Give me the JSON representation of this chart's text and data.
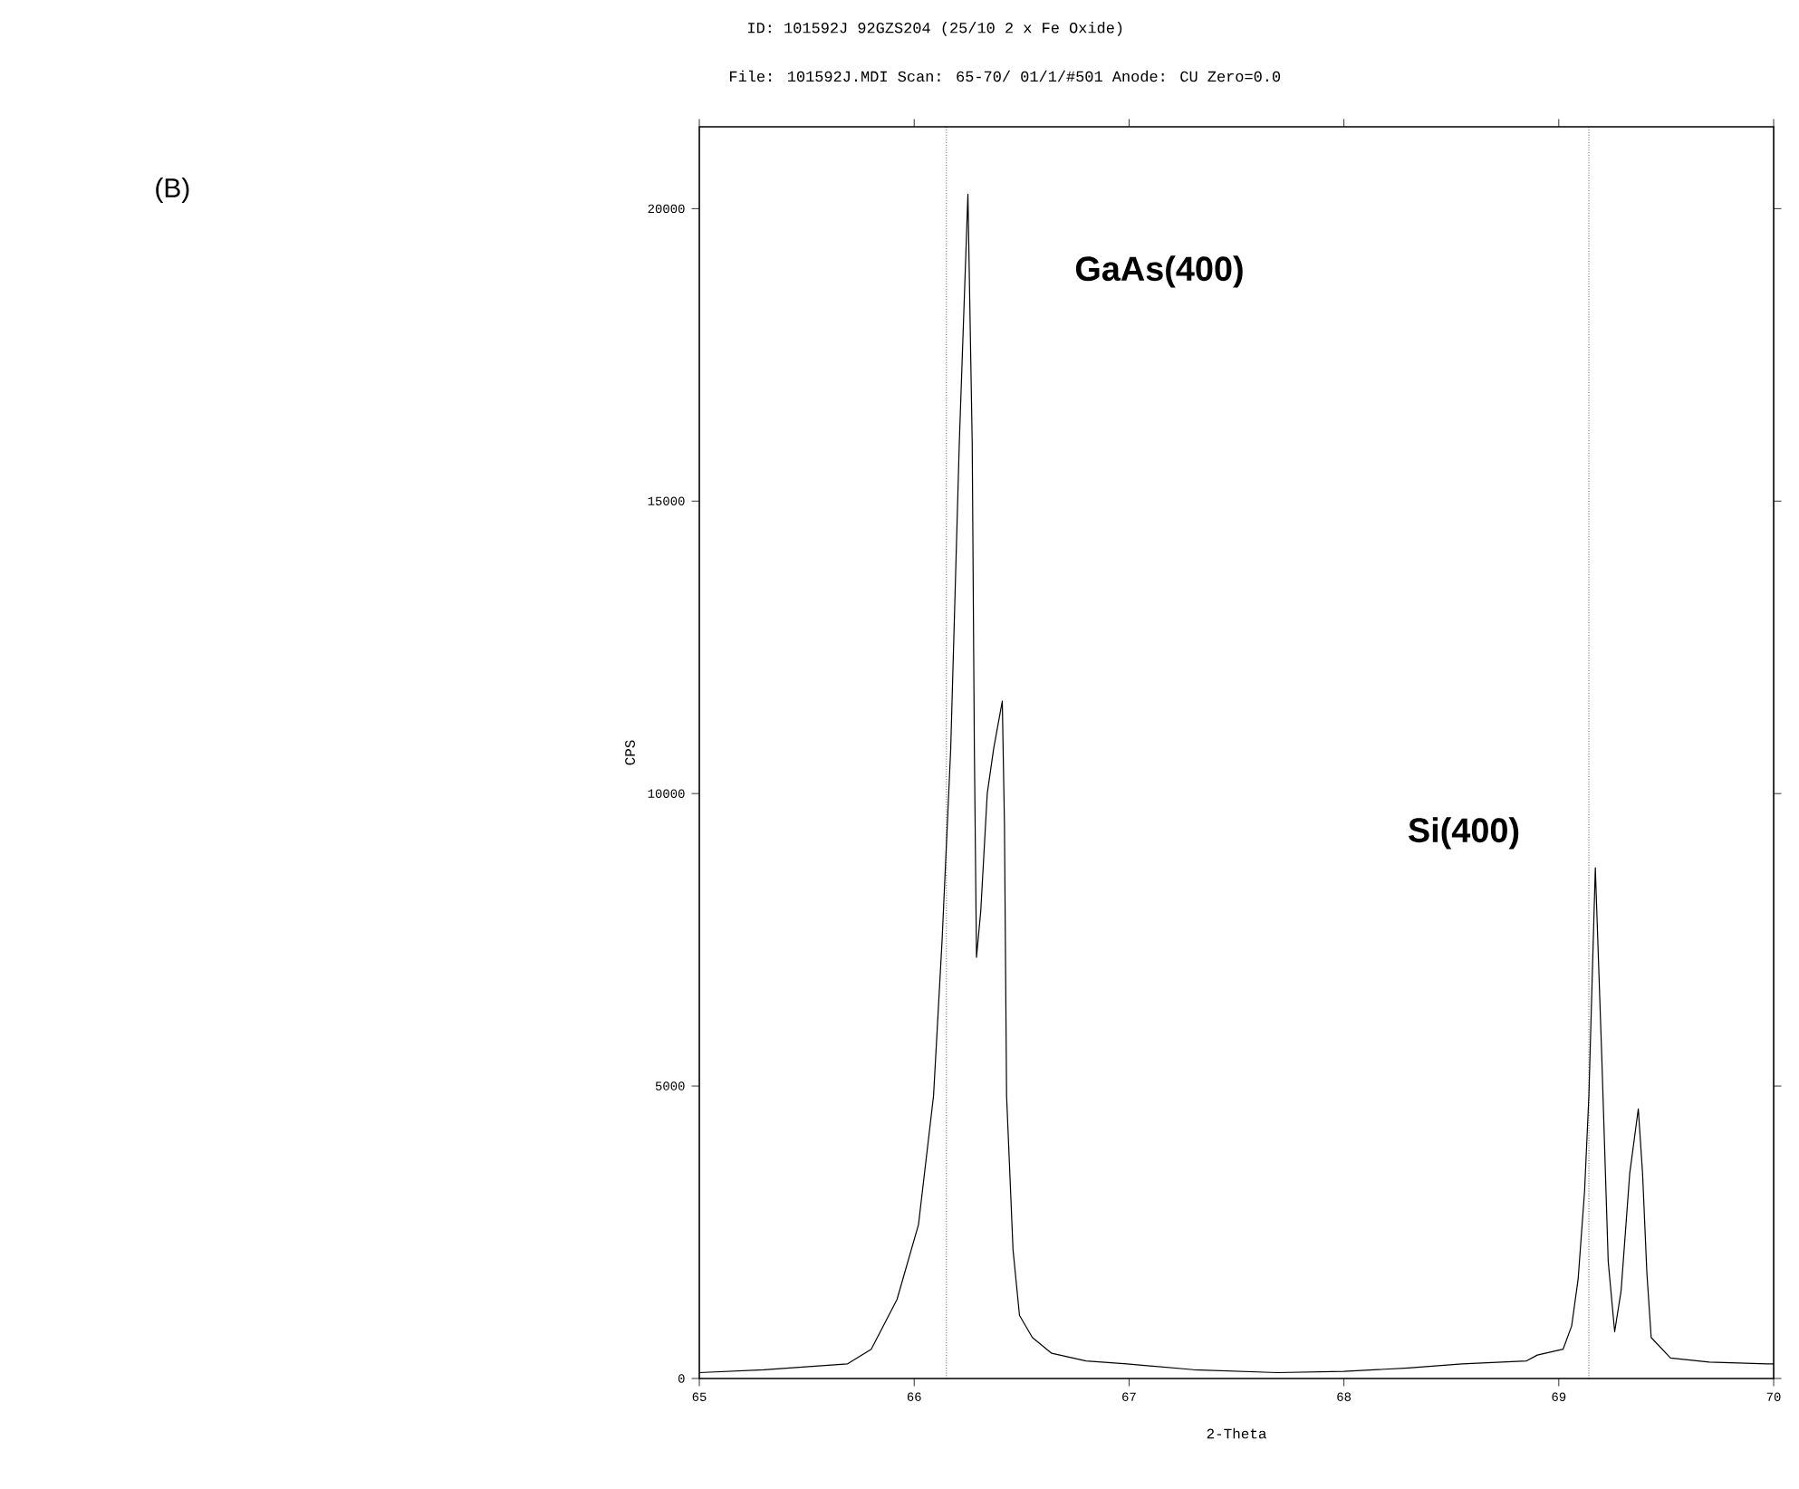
{
  "chart_data": {
    "type": "line",
    "title": "ID: 101592J 92GZS204 (25/10 2 x Fe Oxide)",
    "subtitle": "File: 101592J.MDI   Scan: 65-70/ 01/1/#501  Anode: CU        Zero=0.0",
    "xlabel": "2-Theta",
    "ylabel": "CPS",
    "annotations": [
      "(B)",
      "GaAs(400)",
      "Si(400)"
    ],
    "series": [
      {
        "color": "#000000",
        "marker": "none",
        "line_style": "solid",
        "x": [
          65.0,
          65.3,
          65.69,
          65.8,
          65.92,
          66.02,
          66.09,
          66.13,
          66.17,
          66.21,
          66.25,
          66.27,
          66.28,
          66.29,
          66.31,
          66.34,
          66.37,
          66.41,
          66.42,
          66.43,
          66.46,
          66.49,
          66.55,
          66.64,
          66.8,
          66.99,
          67.3,
          67.69,
          68.0,
          68.3,
          68.55,
          68.85,
          68.9,
          69.02,
          69.06,
          69.09,
          69.12,
          69.14,
          69.17,
          69.2,
          69.23,
          69.26,
          69.29,
          69.33,
          69.37,
          69.39,
          69.41,
          69.43,
          69.52,
          69.7,
          69.97,
          70.0
        ],
        "values": [
          100,
          150,
          250,
          500,
          1350,
          2630,
          4830,
          7500,
          10770,
          16000,
          20250,
          16000,
          10770,
          7200,
          8000,
          10000,
          10770,
          11580,
          9500,
          4830,
          2200,
          1080,
          700,
          430,
          300,
          250,
          150,
          100,
          120,
          180,
          250,
          300,
          400,
          500,
          900,
          1700,
          3200,
          4830,
          8730,
          5500,
          2000,
          800,
          1500,
          3500,
          4610,
          3500,
          1800,
          700,
          350,
          280,
          250,
          250
        ]
      }
    ],
    "xlim": [
      65,
      70
    ],
    "ylim": [
      0,
      21400
    ],
    "xticks": [
      65,
      66,
      67,
      68,
      69,
      70
    ],
    "yticks": [
      0,
      5000,
      10000,
      15000,
      20000
    ],
    "ref_lines": [
      {
        "axis": "x",
        "value": 66.15,
        "color": "#000000",
        "line_style": "dotted"
      },
      {
        "axis": "x",
        "value": 69.14,
        "color": "#000000",
        "line_style": "dotted"
      }
    ]
  }
}
